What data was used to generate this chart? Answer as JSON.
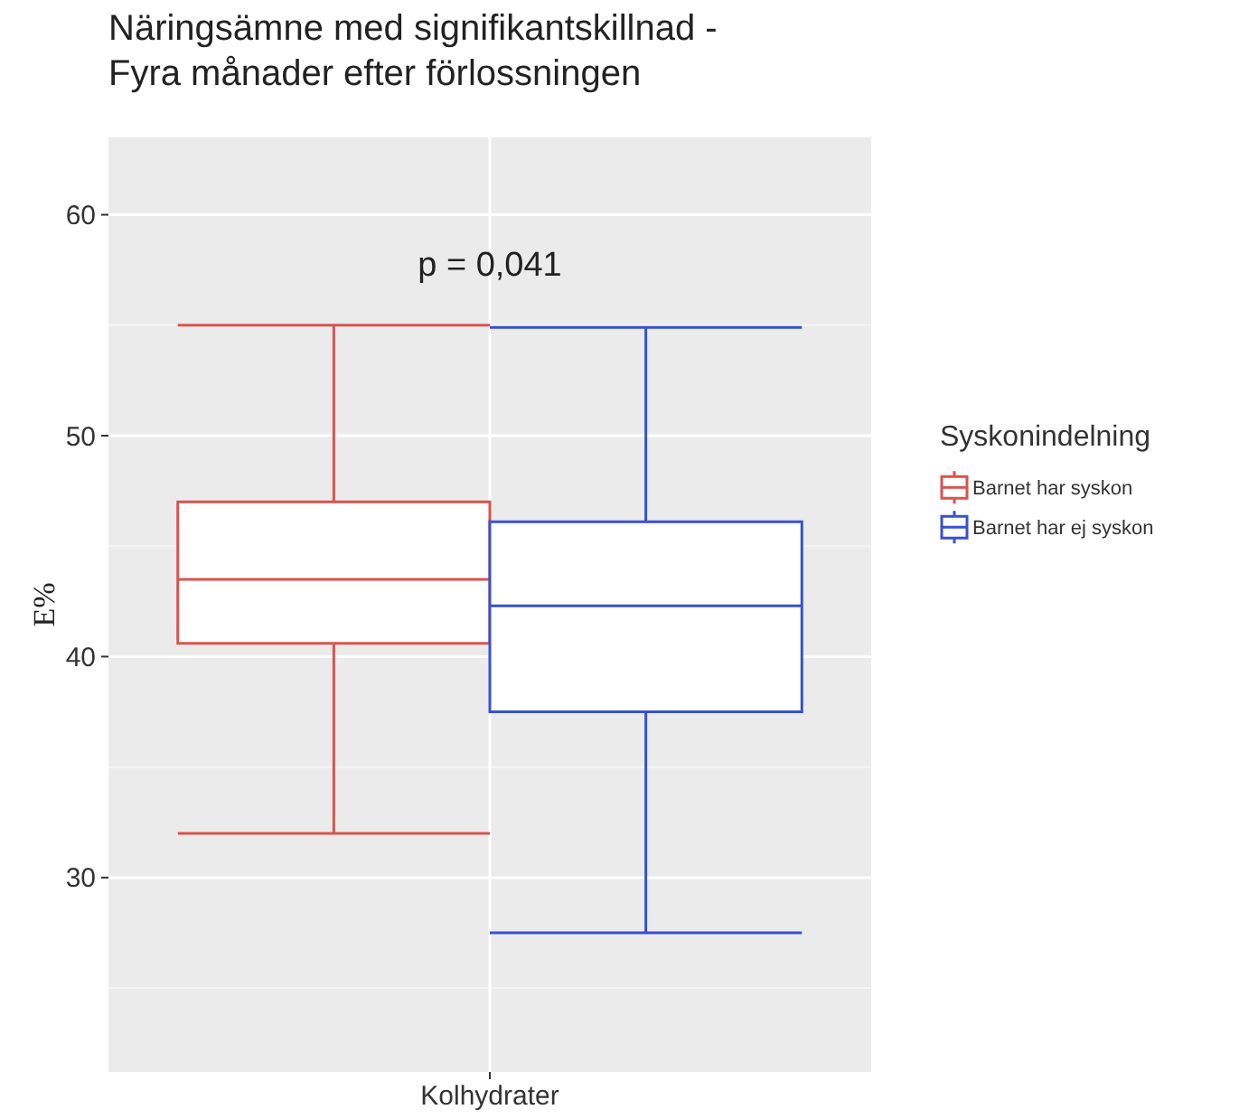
{
  "chart_data": {
    "type": "box",
    "title": "Näringsämne med signifikantskillnad -\nFyra månader efter förlossningen",
    "ylabel": "E%",
    "legend_title": "Syskonindelning",
    "categories": [
      "Kolhydrater"
    ],
    "series": [
      {
        "name": "Barnet har syskon",
        "color": "#d9534f",
        "boxes": [
          {
            "low": 32,
            "q1": 40.6,
            "median": 43.5,
            "q3": 47,
            "high": 55
          }
        ]
      },
      {
        "name": "Barnet har ej syskon",
        "color": "#3a50d0",
        "boxes": [
          {
            "low": 27.5,
            "q1": 37.5,
            "median": 42.3,
            "q3": 46.1,
            "high": 54.9
          }
        ]
      }
    ],
    "annotations": [
      "p = 0,041"
    ],
    "ylim": [
      21.2,
      63.5
    ],
    "yticks": [
      30,
      40,
      50,
      60
    ],
    "grid": true,
    "legend": "right"
  }
}
